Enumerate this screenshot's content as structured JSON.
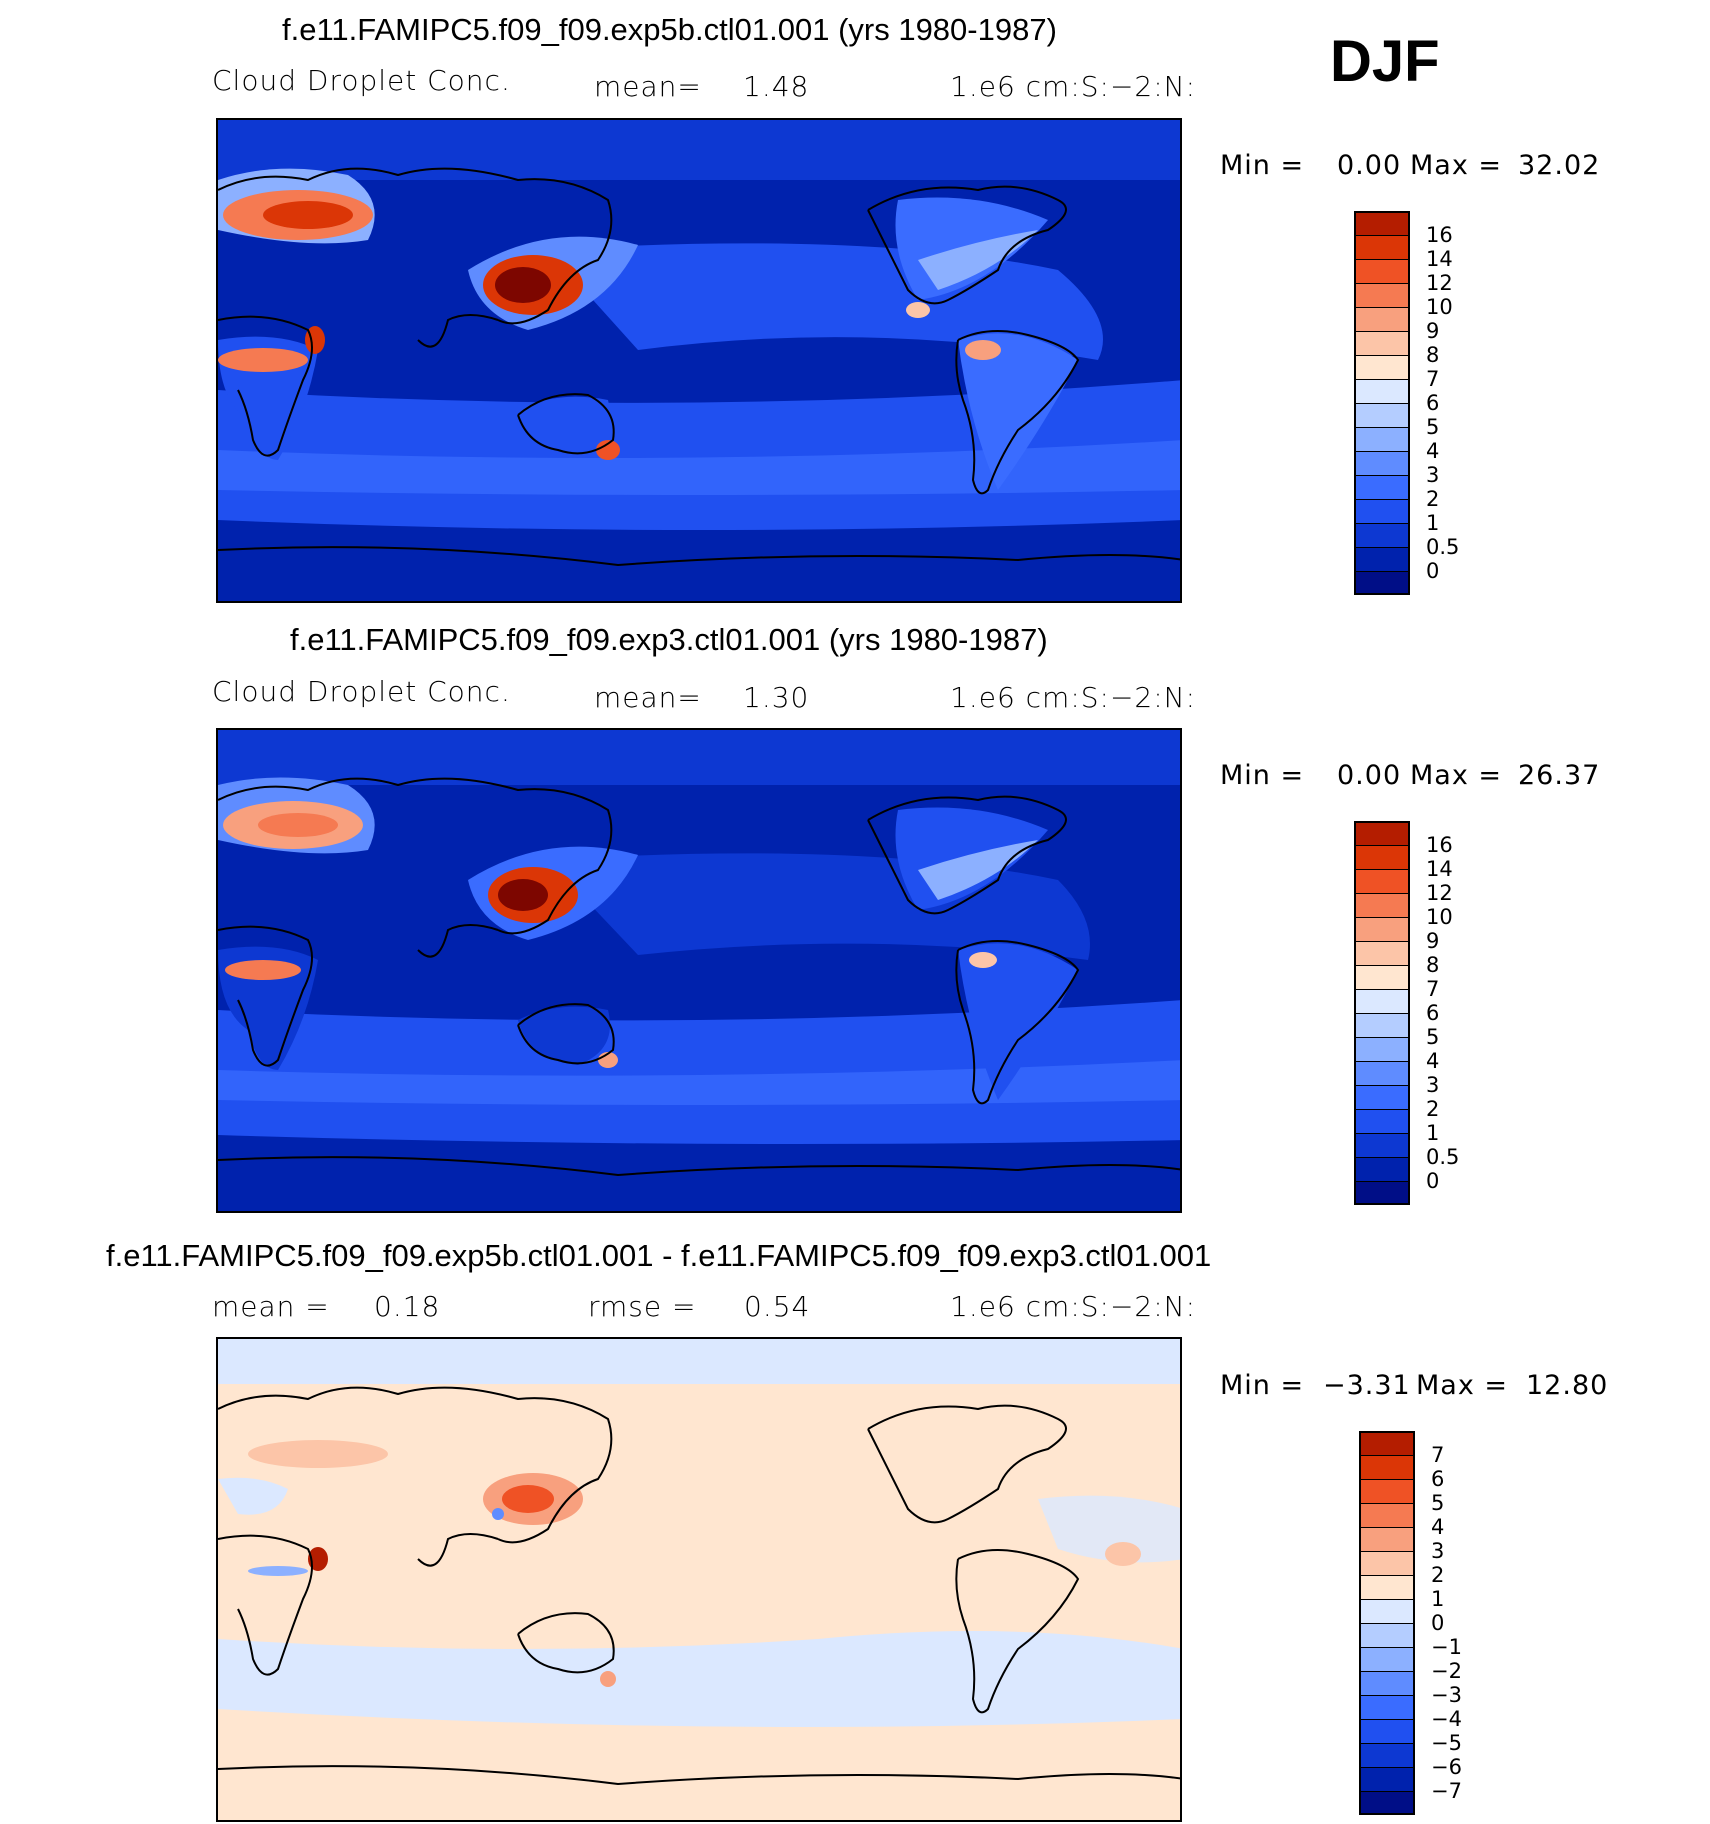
{
  "season": "DJF",
  "colors": {
    "main_scale": [
      "#000e87",
      "#0022ad",
      "#0d38d2",
      "#2050f0",
      "#3a6cff",
      "#5f8cff",
      "#8cb0ff",
      "#b4cdff",
      "#dbe8ff",
      "#ffe6d0",
      "#fcc5a8",
      "#f8a07e",
      "#f57a52",
      "#ef5225",
      "#db3606",
      "#b41d00",
      "#7d0600"
    ],
    "diff_scale": [
      "#000e87",
      "#0022ad",
      "#0d38d2",
      "#2050f0",
      "#3a6cff",
      "#5f8cff",
      "#8cb0ff",
      "#b4cdff",
      "#dbe8ff",
      "#ffe6d0",
      "#fcc5a8",
      "#f8a07e",
      "#f57a52",
      "#ef5225",
      "#db3606",
      "#b41d00",
      "#7d0600"
    ]
  },
  "panels": [
    {
      "title": "f.e11.FAMIPC5.f09_f09.exp5b.ctl01.001 (yrs 1980-1987)",
      "variable": "Cloud Droplet Conc.",
      "mean_text": "mean=",
      "mean_value": "1.48",
      "units": "1.e6 cm:S:−2:N:",
      "min_label": "Min =",
      "min_value": "0.00",
      "max_label": "Max =",
      "max_value": "32.02",
      "colorbar_labels": [
        "16",
        "14",
        "12",
        "10",
        "9",
        "8",
        "7",
        "6",
        "5",
        "4",
        "3",
        "2",
        "1",
        "0.5",
        "0"
      ]
    },
    {
      "title": "f.e11.FAMIPC5.f09_f09.exp3.ctl01.001 (yrs 1980-1987)",
      "variable": "Cloud Droplet Conc.",
      "mean_text": "mean=",
      "mean_value": "1.30",
      "units": "1.e6 cm:S:−2:N:",
      "min_label": "Min =",
      "min_value": "0.00",
      "max_label": "Max =",
      "max_value": "26.37",
      "colorbar_labels": [
        "16",
        "14",
        "12",
        "10",
        "9",
        "8",
        "7",
        "6",
        "5",
        "4",
        "3",
        "2",
        "1",
        "0.5",
        "0"
      ]
    },
    {
      "title": "f.e11.FAMIPC5.f09_f09.exp5b.ctl01.001 - f.e11.FAMIPC5.f09_f09.exp3.ctl01.001",
      "mean_text": "mean =",
      "mean_value": "0.18",
      "rmse_text": "rmse =",
      "rmse_value": "0.54",
      "units": "1.e6 cm:S:−2:N:",
      "min_label": "Min =",
      "min_value": "−3.31",
      "max_label": "Max =",
      "max_value": "12.80",
      "colorbar_labels": [
        "7",
        "6",
        "5",
        "4",
        "3",
        "2",
        "1",
        "0",
        "−1",
        "−2",
        "−3",
        "−4",
        "−5",
        "−6",
        "−7"
      ]
    }
  ]
}
